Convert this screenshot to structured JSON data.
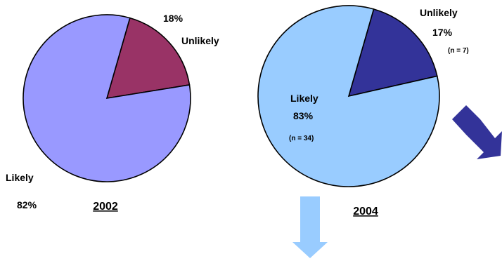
{
  "chart_data": [
    {
      "type": "pie",
      "title": "2002",
      "slices": [
        {
          "label": "Unlikely",
          "value": 18,
          "pct_text": "18%",
          "n_text": "",
          "color": "#993366"
        },
        {
          "label": "Likely",
          "value": 82,
          "pct_text": "82%",
          "n_text": "",
          "color": "#9999FF"
        }
      ]
    },
    {
      "type": "pie",
      "title": "2004",
      "slices": [
        {
          "label": "Unlikely",
          "value": 17,
          "pct_text": "17%",
          "n_text": "(n = 7)",
          "color": "#333399"
        },
        {
          "label": "Likely",
          "value": 83,
          "pct_text": "83%",
          "n_text": "(n = 34)",
          "color": "#99CCFF"
        }
      ]
    }
  ],
  "arrows": [
    {
      "name": "down-arrow",
      "color": "#99CCFF"
    },
    {
      "name": "diagonal-arrow",
      "color": "#333399"
    }
  ]
}
